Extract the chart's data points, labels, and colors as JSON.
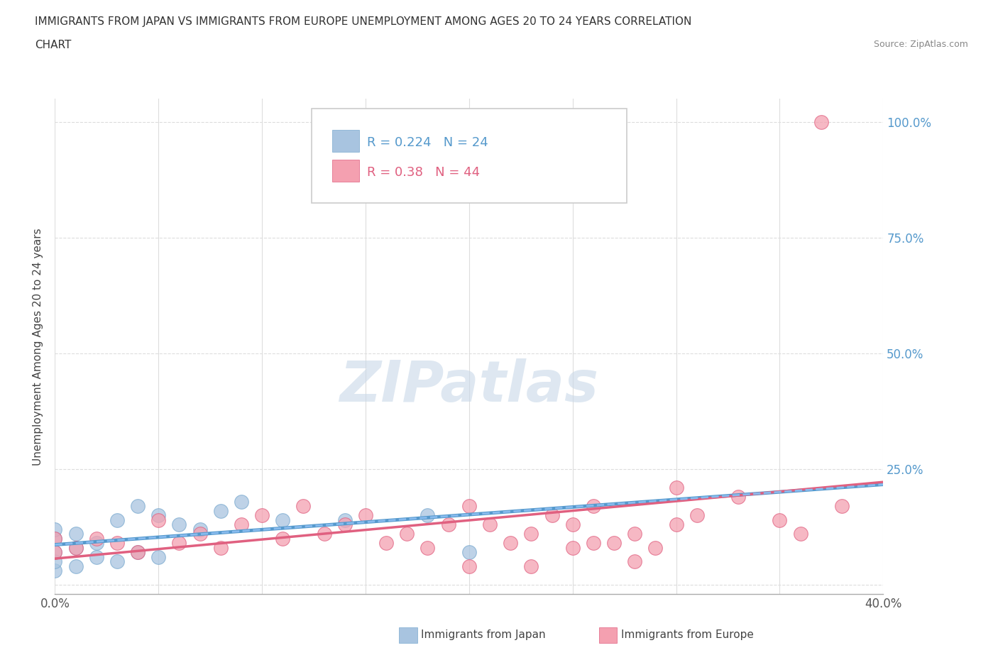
{
  "title_line1": "IMMIGRANTS FROM JAPAN VS IMMIGRANTS FROM EUROPE UNEMPLOYMENT AMONG AGES 20 TO 24 YEARS CORRELATION",
  "title_line2": "CHART",
  "source": "Source: ZipAtlas.com",
  "ylabel": "Unemployment Among Ages 20 to 24 years",
  "x_min": 0.0,
  "x_max": 0.4,
  "y_min": -0.02,
  "y_max": 1.05,
  "x_ticks": [
    0.0,
    0.05,
    0.1,
    0.15,
    0.2,
    0.25,
    0.3,
    0.35,
    0.4
  ],
  "y_ticks": [
    0.0,
    0.25,
    0.5,
    0.75,
    1.0
  ],
  "y_tick_labels": [
    "",
    "25.0%",
    "50.0%",
    "75.0%",
    "100.0%"
  ],
  "japan_color": "#a8c4e0",
  "japan_edge_color": "#7aaacf",
  "europe_color": "#f4a0b0",
  "europe_edge_color": "#e06080",
  "japan_R": 0.224,
  "japan_N": 24,
  "europe_R": 0.38,
  "europe_N": 44,
  "japan_line_color": "#5599cc",
  "europe_line_color": "#e06080",
  "background_color": "#ffffff",
  "grid_color": "#dddddd",
  "watermark": "ZIPatlas",
  "watermark_color": "#c8d8e8",
  "japan_x": [
    0.0,
    0.0,
    0.0,
    0.0,
    0.0,
    0.01,
    0.01,
    0.01,
    0.02,
    0.02,
    0.03,
    0.03,
    0.04,
    0.04,
    0.05,
    0.05,
    0.06,
    0.07,
    0.08,
    0.09,
    0.11,
    0.14,
    0.18,
    0.2
  ],
  "japan_y": [
    0.03,
    0.05,
    0.07,
    0.1,
    0.12,
    0.04,
    0.08,
    0.11,
    0.06,
    0.09,
    0.05,
    0.14,
    0.07,
    0.17,
    0.06,
    0.15,
    0.13,
    0.12,
    0.16,
    0.18,
    0.14,
    0.14,
    0.15,
    0.07
  ],
  "europe_x": [
    0.0,
    0.0,
    0.01,
    0.02,
    0.03,
    0.04,
    0.05,
    0.06,
    0.07,
    0.08,
    0.09,
    0.1,
    0.11,
    0.12,
    0.13,
    0.14,
    0.15,
    0.16,
    0.17,
    0.18,
    0.19,
    0.2,
    0.21,
    0.22,
    0.23,
    0.24,
    0.25,
    0.26,
    0.27,
    0.28,
    0.29,
    0.3,
    0.31,
    0.33,
    0.35,
    0.36,
    0.37,
    0.38,
    0.23,
    0.26,
    0.28,
    0.3,
    0.2,
    0.25
  ],
  "europe_y": [
    0.07,
    0.1,
    0.08,
    0.1,
    0.09,
    0.07,
    0.14,
    0.09,
    0.11,
    0.08,
    0.13,
    0.15,
    0.1,
    0.17,
    0.11,
    0.13,
    0.15,
    0.09,
    0.11,
    0.08,
    0.13,
    0.17,
    0.13,
    0.09,
    0.11,
    0.15,
    0.13,
    0.17,
    0.09,
    0.11,
    0.08,
    0.13,
    0.15,
    0.19,
    0.14,
    0.11,
    1.0,
    0.17,
    0.04,
    0.09,
    0.05,
    0.21,
    0.04,
    0.08
  ]
}
